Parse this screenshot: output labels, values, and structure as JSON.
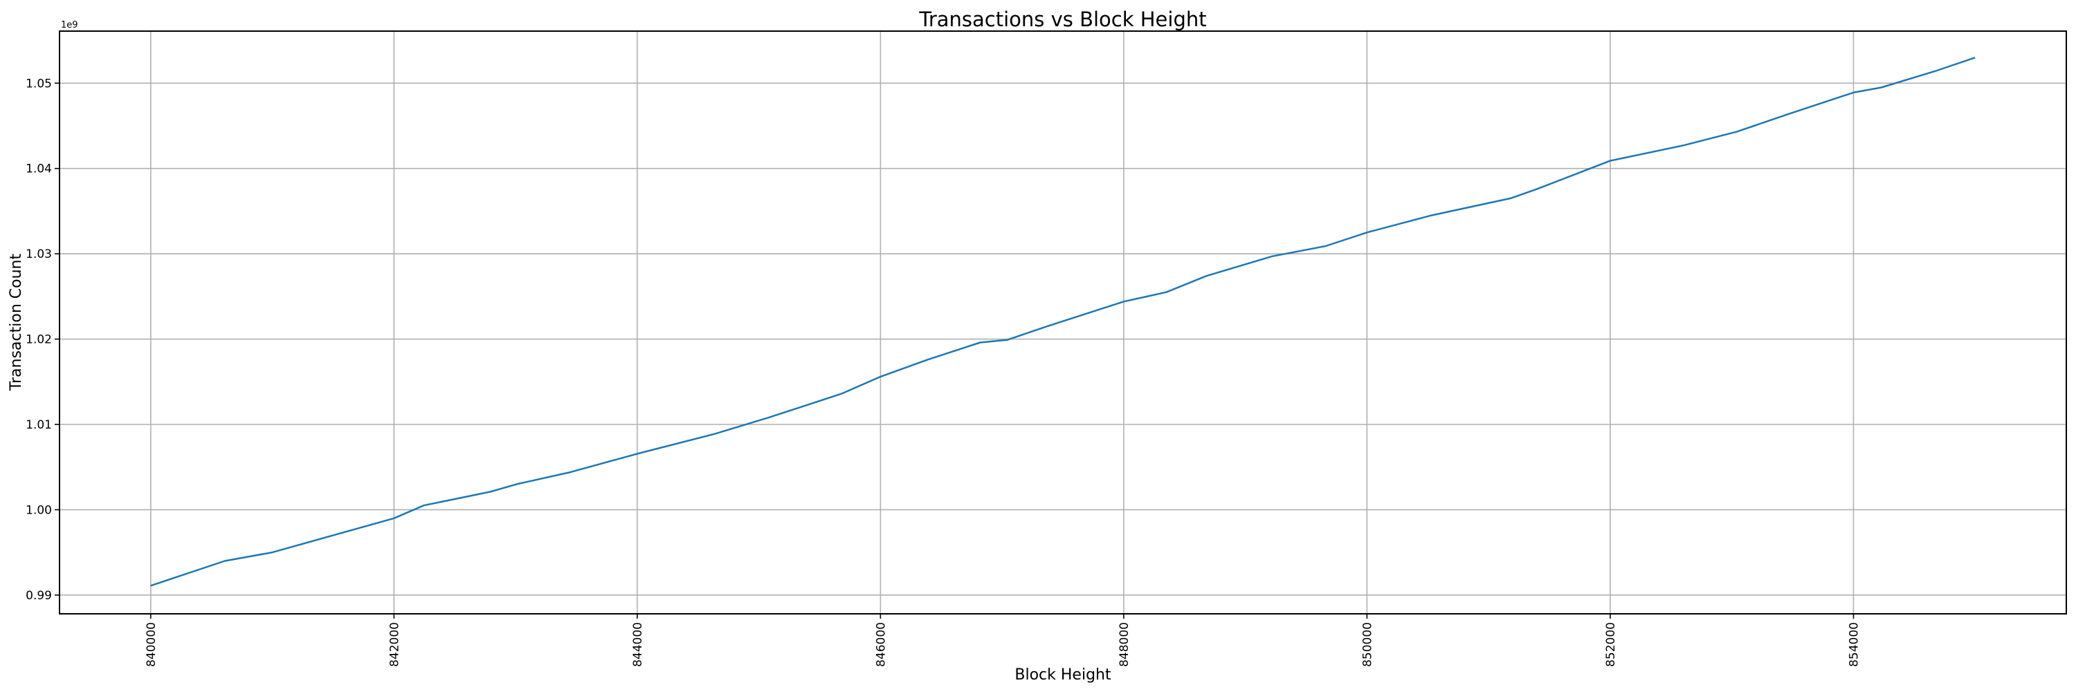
{
  "chart_data": {
    "type": "line",
    "title": "Transactions vs Block Height",
    "xlabel": "Block Height",
    "ylabel": "Transaction Count",
    "y_offset_label": "1e9",
    "xlim": [
      839250,
      855750
    ],
    "ylim": [
      0.9878,
      1.0561
    ],
    "y_scale_factor": 1000000000,
    "grid": true,
    "x_ticks": [
      840000,
      842000,
      844000,
      846000,
      848000,
      850000,
      852000,
      854000
    ],
    "x_tick_labels": [
      "840000",
      "842000",
      "844000",
      "846000",
      "848000",
      "850000",
      "852000",
      "854000"
    ],
    "y_ticks": [
      0.99,
      1.0,
      1.01,
      1.02,
      1.03,
      1.04,
      1.05
    ],
    "y_tick_labels": [
      "0.99",
      "1.00",
      "1.01",
      "1.02",
      "1.03",
      "1.04",
      "1.05"
    ],
    "series": [
      {
        "color": "#1f77b4",
        "x": [
          840000,
          840610,
          841000,
          842000,
          842245,
          842790,
          843010,
          843450,
          844010,
          844640,
          845080,
          845680,
          846000,
          846390,
          846820,
          847040,
          847370,
          848000,
          848350,
          848680,
          849220,
          849660,
          850000,
          850530,
          851180,
          851400,
          852000,
          852600,
          853040,
          853470,
          854000,
          854230,
          854670,
          855000
        ],
        "y": [
          0.9911,
          0.994,
          0.995,
          0.999,
          1.0005,
          1.0021,
          1.003,
          1.0044,
          1.0066,
          1.0089,
          1.0108,
          1.0136,
          1.0156,
          1.0176,
          1.0196,
          1.0199,
          1.0215,
          1.0244,
          1.0255,
          1.0274,
          1.0297,
          1.0309,
          1.0325,
          1.0345,
          1.0365,
          1.0376,
          1.0409,
          1.0427,
          1.0443,
          1.0464,
          1.0489,
          1.0495,
          1.0514,
          1.053
        ]
      }
    ]
  }
}
